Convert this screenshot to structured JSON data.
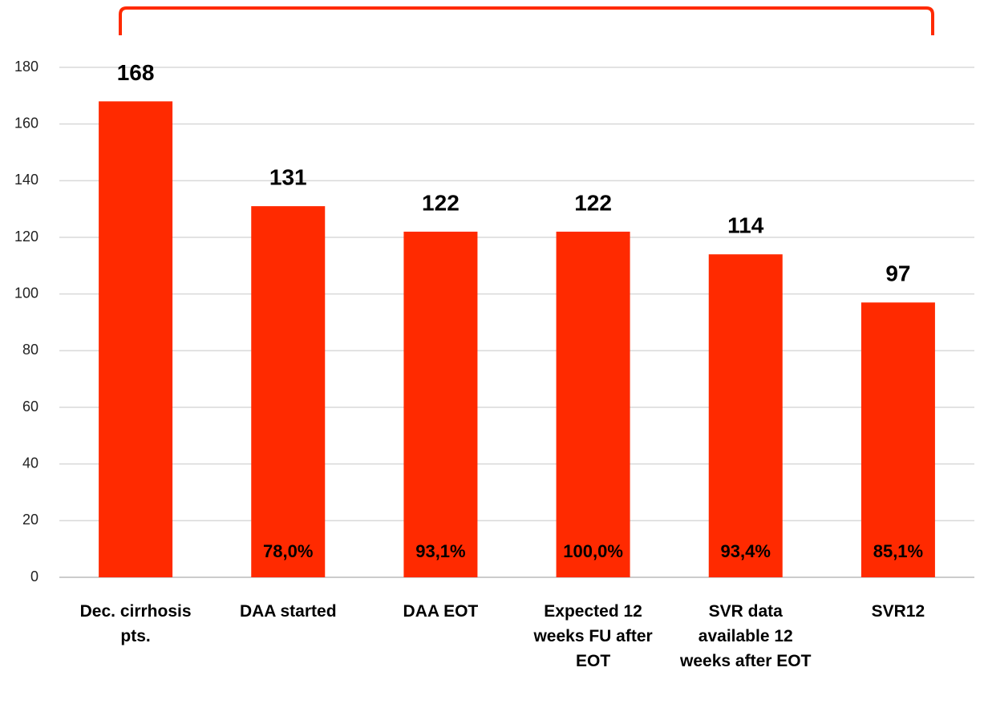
{
  "chart_data": {
    "type": "bar",
    "categories": [
      "Dec. cirrhosis pts.",
      "DAA started",
      "DAA EOT",
      "Expected 12 weeks FU after EOT",
      "SVR data available 12 weeks after EOT",
      "SVR12"
    ],
    "values": [
      168,
      131,
      122,
      122,
      114,
      97
    ],
    "annotations": [
      null,
      "78,0%",
      "93,1%",
      "100,0%",
      "93,4%",
      "85,1%"
    ],
    "color": "#ff2a00",
    "ylim": [
      0,
      180
    ],
    "yticks": [
      0,
      20,
      40,
      60,
      80,
      100,
      120,
      140,
      160,
      180
    ],
    "grid": true
  }
}
